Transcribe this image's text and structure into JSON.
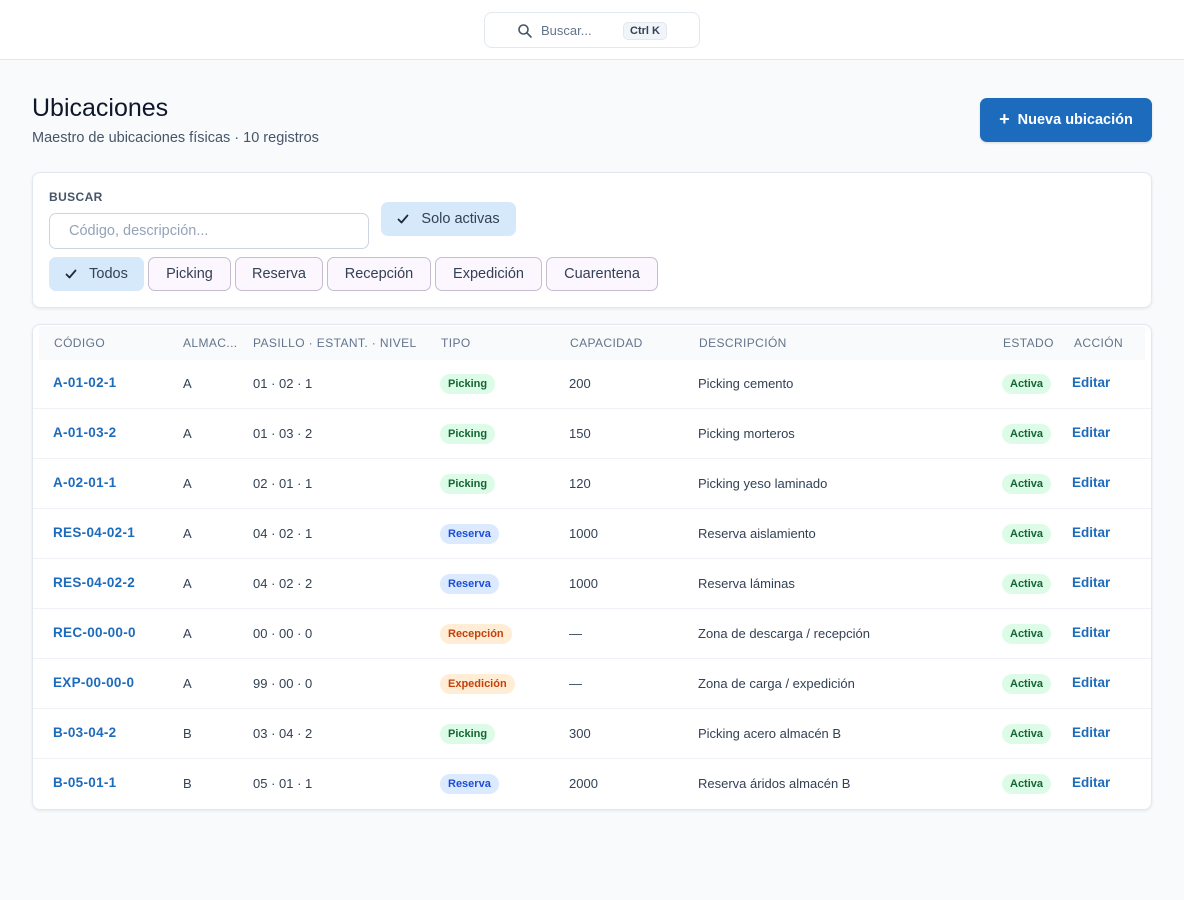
{
  "search": {
    "placeholder": "Buscar...",
    "shortcut": "Ctrl K"
  },
  "header": {
    "title": "Ubicaciones",
    "subtitle": "Maestro de ubicaciones físicas · 10 registros",
    "new_button": "Nueva ubicación"
  },
  "filters": {
    "label": "BUSCAR",
    "search_placeholder": "Código, descripción...",
    "only_active": "Solo activas",
    "chips": [
      "Todos",
      "Picking",
      "Reserva",
      "Recepción",
      "Expedición",
      "Cuarentena"
    ],
    "selected_chip": "Todos"
  },
  "table": {
    "headers": {
      "code": "CÓDIGO",
      "warehouse": "ALMAC...",
      "position": "PASILLO · ESTANT. · NIVEL",
      "type": "TIPO",
      "capacity": "CAPACIDAD",
      "description": "DESCRIPCIÓN",
      "status": "ESTADO",
      "action": "ACCIÓN"
    },
    "action_label": "Editar",
    "rows": [
      {
        "code": "A-01-02-1",
        "warehouse": "A",
        "position": "01 · 02 · 1",
        "type": "Picking",
        "capacity": "200",
        "description": "Picking cemento",
        "status": "Activa"
      },
      {
        "code": "A-01-03-2",
        "warehouse": "A",
        "position": "01 · 03 · 2",
        "type": "Picking",
        "capacity": "150",
        "description": "Picking morteros",
        "status": "Activa"
      },
      {
        "code": "A-02-01-1",
        "warehouse": "A",
        "position": "02 · 01 · 1",
        "type": "Picking",
        "capacity": "120",
        "description": "Picking yeso laminado",
        "status": "Activa"
      },
      {
        "code": "RES-04-02-1",
        "warehouse": "A",
        "position": "04 · 02 · 1",
        "type": "Reserva",
        "capacity": "1000",
        "description": "Reserva aislamiento",
        "status": "Activa"
      },
      {
        "code": "RES-04-02-2",
        "warehouse": "A",
        "position": "04 · 02 · 2",
        "type": "Reserva",
        "capacity": "1000",
        "description": "Reserva láminas",
        "status": "Activa"
      },
      {
        "code": "REC-00-00-0",
        "warehouse": "A",
        "position": "00 · 00 · 0",
        "type": "Recepción",
        "capacity": "—",
        "description": "Zona de descarga / recepción",
        "status": "Activa"
      },
      {
        "code": "EXP-00-00-0",
        "warehouse": "A",
        "position": "99 · 00 · 0",
        "type": "Expedición",
        "capacity": "—",
        "description": "Zona de carga / expedición",
        "status": "Activa"
      },
      {
        "code": "B-03-04-2",
        "warehouse": "B",
        "position": "03 · 04 · 2",
        "type": "Picking",
        "capacity": "300",
        "description": "Picking acero almacén B",
        "status": "Activa"
      },
      {
        "code": "B-05-01-1",
        "warehouse": "B",
        "position": "05 · 01 · 1",
        "type": "Reserva",
        "capacity": "2000",
        "description": "Reserva áridos almacén B",
        "status": "Activa"
      }
    ]
  },
  "colors": {
    "accent": "#1d6bbd",
    "picking_bg": "#dcfce7",
    "picking_fg": "#166534",
    "reserva_bg": "#dbeafe",
    "reserva_fg": "#1d4ed8",
    "recepcion_bg": "#ffedd5",
    "recepcion_fg": "#c2410c",
    "expedicion_bg": "#ffedd5",
    "expedicion_fg": "#c2410c",
    "activa_bg": "#dcfce7",
    "activa_fg": "#166534"
  },
  "icons": {
    "search": "search-icon",
    "check": "check-icon",
    "plus": "plus-icon"
  }
}
